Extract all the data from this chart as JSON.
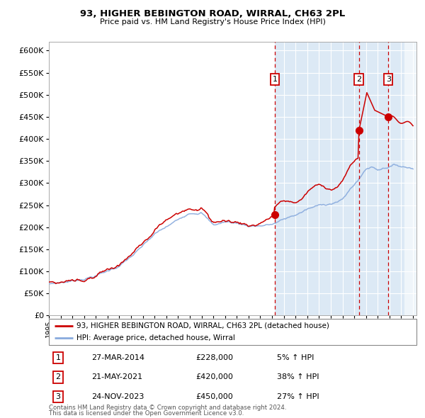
{
  "title": "93, HIGHER BEBINGTON ROAD, WIRRAL, CH63 2PL",
  "subtitle": "Price paid vs. HM Land Registry's House Price Index (HPI)",
  "transactions": [
    {
      "label": "1",
      "date": "27-MAR-2014",
      "date_num": 2014.23,
      "price": 228000,
      "pct": "5% ↑ HPI"
    },
    {
      "label": "2",
      "date": "21-MAY-2021",
      "date_num": 2021.39,
      "price": 420000,
      "pct": "38% ↑ HPI"
    },
    {
      "label": "3",
      "date": "24-NOV-2023",
      "date_num": 2023.9,
      "price": 450000,
      "pct": "27% ↑ HPI"
    }
  ],
  "legend_property": "93, HIGHER BEBINGTON ROAD, WIRRAL, CH63 2PL (detached house)",
  "legend_hpi": "HPI: Average price, detached house, Wirral",
  "footer1": "Contains HM Land Registry data © Crown copyright and database right 2024.",
  "footer2": "This data is licensed under the Open Government Licence v3.0.",
  "ylim": [
    0,
    620000
  ],
  "yticks": [
    0,
    50000,
    100000,
    150000,
    200000,
    250000,
    300000,
    350000,
    400000,
    450000,
    500000,
    550000,
    600000
  ],
  "xmin": 1995.0,
  "xmax": 2026.3,
  "bg_color": "#dce9f5",
  "grid_color": "#ffffff",
  "property_line_color": "#cc0000",
  "hpi_line_color": "#88aadd",
  "vline_color": "#cc0000",
  "marker_color": "#cc0000",
  "transaction_shade_start": 2014.23
}
